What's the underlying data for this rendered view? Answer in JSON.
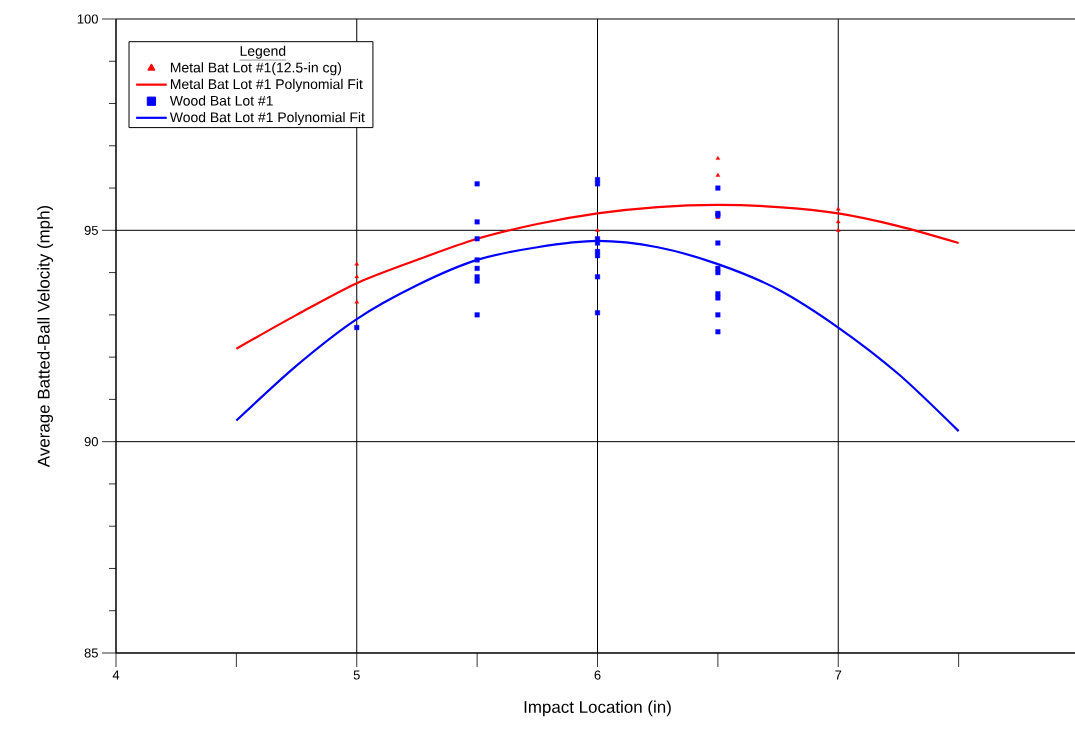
{
  "chart_data": {
    "type": "scatter",
    "xlabel": "Impact Location (in)",
    "ylabel": "Average Batted-Ball Velocity (mph)",
    "legend_title": "Legend",
    "xlim": [
      4,
      8
    ],
    "ylim": [
      85,
      100
    ],
    "xticks": [
      4,
      {
        "value": 4.5,
        "label": null
      },
      5,
      {
        "value": 5.5,
        "label": null
      },
      6,
      {
        "value": 6.5,
        "label": null
      },
      7,
      {
        "value": 7.5,
        "label": null
      }
    ],
    "yticks": [
      85,
      {
        "value": 86,
        "label": null
      },
      {
        "value": 87,
        "label": null
      },
      {
        "value": 88,
        "label": null
      },
      {
        "value": 89,
        "label": null
      },
      90,
      {
        "value": 91,
        "label": null
      },
      {
        "value": 92,
        "label": null
      },
      {
        "value": 93,
        "label": null
      },
      {
        "value": 94,
        "label": null
      },
      95,
      {
        "value": 96,
        "label": null
      },
      {
        "value": 97,
        "label": null
      },
      {
        "value": 98,
        "label": null
      },
      {
        "value": 99,
        "label": null
      },
      100
    ],
    "grid": true,
    "legend": "top left",
    "series": [
      {
        "name": "Metal Bat Lot #1(12.5-in cg)",
        "marker": "triangle",
        "color": "#ff0000",
        "x": [
          5,
          5,
          5,
          6,
          6.5,
          6.5,
          6.5,
          7,
          7,
          7
        ],
        "values": [
          94.2,
          93.9,
          93.3,
          95.0,
          96.7,
          96.3,
          95.3,
          95.5,
          95.2,
          95.0
        ]
      },
      {
        "name": "Metal Bat Lot #1 Polynomial Fit",
        "type": "line",
        "marker": "none",
        "color": "#ff0000",
        "x": [
          4.5,
          4.75,
          5,
          5.25,
          5.5,
          5.75,
          6,
          6.25,
          6.5,
          6.75,
          7,
          7.25,
          7.5
        ],
        "values": [
          92.2,
          93.0,
          93.75,
          94.3,
          94.8,
          95.15,
          95.4,
          95.55,
          95.6,
          95.55,
          95.4,
          95.1,
          94.7
        ]
      },
      {
        "name": "Wood Bat Lot #1",
        "marker": "square",
        "color": "#0000ff",
        "x": [
          5,
          5.5,
          5.5,
          5.5,
          5.5,
          5.5,
          5.5,
          5.5,
          5.5,
          6,
          6,
          6,
          6,
          6,
          6,
          6,
          6,
          6.5,
          6.5,
          6.5,
          6.5,
          6.5,
          6.5,
          6.5,
          6.5,
          6.5,
          6.5
        ],
        "values": [
          92.7,
          96.1,
          95.2,
          94.8,
          94.3,
          94.1,
          93.9,
          93.8,
          93.0,
          96.2,
          96.1,
          94.8,
          94.7,
          94.5,
          94.4,
          93.9,
          93.05,
          96.0,
          95.4,
          95.35,
          94.7,
          94.1,
          94.0,
          93.5,
          93.4,
          93.0,
          92.6
        ]
      },
      {
        "name": "Wood Bat Lot #1 Polynomial Fit",
        "type": "line",
        "marker": "none",
        "color": "#0000ff",
        "x": [
          4.5,
          4.75,
          5,
          5.25,
          5.5,
          5.75,
          6,
          6.25,
          6.5,
          6.75,
          7,
          7.25,
          7.5
        ],
        "values": [
          90.5,
          91.8,
          92.9,
          93.7,
          94.3,
          94.6,
          94.75,
          94.6,
          94.2,
          93.6,
          92.7,
          91.6,
          90.25
        ]
      }
    ]
  }
}
